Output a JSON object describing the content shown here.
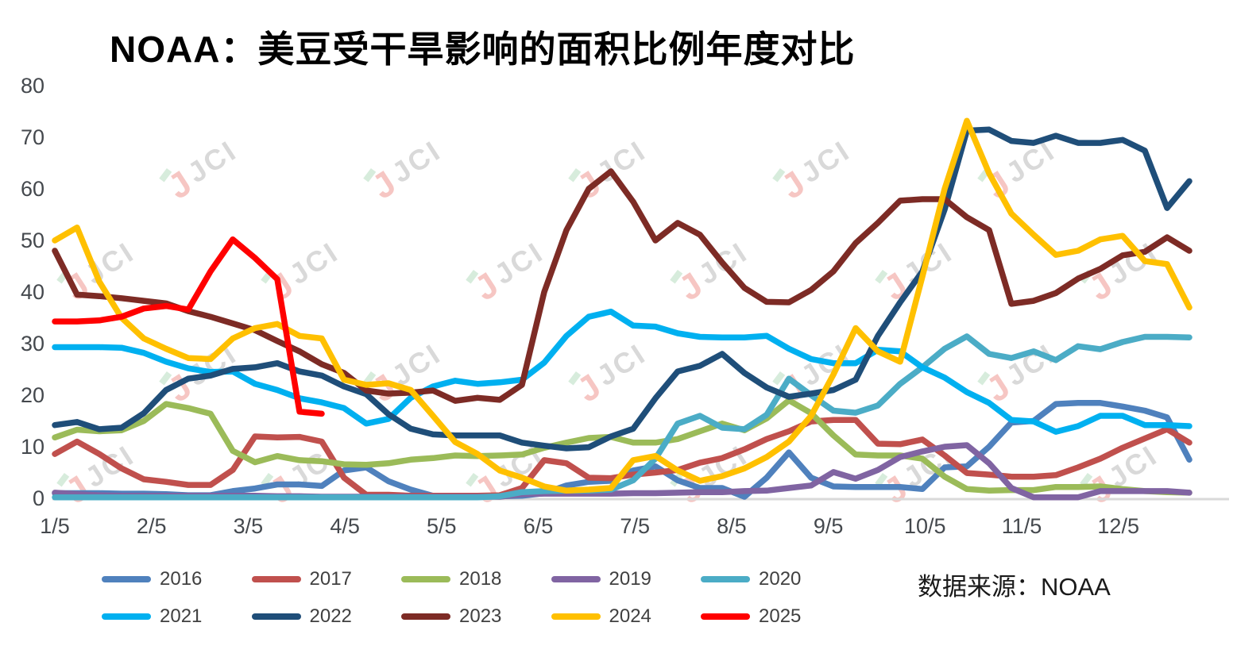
{
  "title": "NOAA：美豆受干旱影响的面积比例年度对比",
  "source": "数据来源：NOAA",
  "watermark": {
    "text": "JCI"
  },
  "colors": {
    "axis_line": "#d9d9d9",
    "tick_label": "#44484d",
    "title": "#000000",
    "watermark_gray": "#d9d9d9",
    "watermark_pink": "#f6c6c3"
  },
  "chart_data": {
    "type": "line",
    "title": "NOAA：美豆受干旱影响的面积比例年度对比",
    "xlabel": "",
    "ylabel": "",
    "ylim": [
      0,
      80
    ],
    "y_ticks": [
      0,
      10,
      20,
      30,
      40,
      50,
      60,
      70,
      80
    ],
    "x_tick_labels": [
      "1/5",
      "2/5",
      "3/5",
      "4/5",
      "5/5",
      "6/5",
      "7/5",
      "8/5",
      "9/5",
      "10/5",
      "11/5",
      "12/5"
    ],
    "x_unit": "weekly values starting Jan 5",
    "grid": false,
    "legend_position": "bottom",
    "series": [
      {
        "name": "2016",
        "color": "#4F81BD",
        "values": [
          1,
          1,
          1,
          0.9,
          0.9,
          0.8,
          0.6,
          0.6,
          1.4,
          1.9,
          2.7,
          2.7,
          2.4,
          5.4,
          6,
          3.3,
          1.7,
          0.5,
          0.5,
          0.4,
          0.4,
          0.5,
          1,
          2.5,
          3.2,
          3.4,
          5.4,
          6.2,
          3.5,
          2,
          2,
          0.3,
          4,
          8.9,
          4,
          2.3,
          2.2,
          2.2,
          2.2,
          1.8,
          6,
          6.2,
          10,
          14.7,
          15,
          18.3,
          18.5,
          18.5,
          17.8,
          17,
          15.7,
          7.5
        ]
      },
      {
        "name": "2017",
        "color": "#C0504D",
        "values": [
          8.6,
          11,
          8.6,
          5.8,
          3.7,
          3.2,
          2.6,
          2.6,
          5.5,
          12,
          11.8,
          11.9,
          11,
          4,
          0.7,
          0.7,
          0.5,
          0.5,
          0.5,
          0.5,
          0.6,
          2,
          7.4,
          6.8,
          4,
          3.9,
          4.6,
          5,
          5.5,
          6.9,
          7.8,
          9.5,
          11.5,
          13,
          14.9,
          15.2,
          15.2,
          10.6,
          10.5,
          11.4,
          8.3,
          4.9,
          4.6,
          4.2,
          4.2,
          4.5,
          6,
          7.7,
          9.8,
          11.6,
          13.4,
          10.8
        ]
      },
      {
        "name": "2018",
        "color": "#9BBB59",
        "values": [
          11.8,
          13.3,
          13,
          13.2,
          15,
          18.3,
          17.5,
          16.4,
          9.2,
          7,
          8.2,
          7.4,
          7.2,
          6.6,
          6.5,
          6.8,
          7.5,
          7.8,
          8.3,
          8.2,
          8.3,
          8.5,
          9.8,
          10.8,
          11.7,
          11.9,
          10.8,
          10.8,
          11.5,
          13,
          14.5,
          13.2,
          15.5,
          19,
          16.5,
          12.2,
          8.5,
          8.3,
          8.3,
          7.7,
          4.2,
          1.8,
          1.5,
          1.6,
          1.6,
          2.2,
          2.2,
          2.3,
          1.8,
          1.4,
          1.2,
          1.1
        ]
      },
      {
        "name": "2019",
        "color": "#8064A2",
        "values": [
          1.1,
          0.8,
          0.6,
          0.5,
          0.5,
          0.5,
          0.5,
          0.5,
          0.5,
          0.5,
          0.4,
          0.4,
          0.3,
          0.3,
          0.3,
          0.3,
          0.3,
          0.3,
          0.3,
          0.3,
          0.3,
          0.8,
          0.9,
          0.9,
          0.9,
          0.9,
          1,
          1,
          1.1,
          1.2,
          1.2,
          1.4,
          1.5,
          2,
          2.5,
          5.1,
          3.8,
          5.5,
          8,
          9.1,
          10,
          10.3,
          6.8,
          2,
          0.2,
          0.2,
          0.2,
          1.4,
          1.4,
          1.4,
          1.4,
          1.1
        ]
      },
      {
        "name": "2020",
        "color": "#4BACC6",
        "values": [
          0.2,
          0.2,
          0.2,
          0.2,
          0.2,
          0.2,
          0.2,
          0.2,
          0.2,
          0.2,
          0.2,
          0.2,
          0.2,
          0.2,
          0.2,
          0.2,
          0.2,
          0.2,
          0.2,
          0.2,
          0.4,
          1.2,
          1.4,
          1.5,
          1.5,
          1.7,
          3.5,
          7.7,
          14.5,
          16,
          13.7,
          13.4,
          16.2,
          23.2,
          20,
          17,
          16.6,
          18,
          22.2,
          25.4,
          29,
          31.4,
          28,
          27.2,
          28.5,
          26.8,
          29.5,
          28.9,
          30.3,
          31.3,
          31.3,
          31.2
        ]
      },
      {
        "name": "2021",
        "color": "#00B0F0",
        "values": [
          29.3,
          29.3,
          29.3,
          29.2,
          28.2,
          26.5,
          25.2,
          24.5,
          24.6,
          22.2,
          21,
          19.4,
          18.6,
          17.5,
          14.5,
          15.4,
          19.5,
          21.7,
          22.8,
          22.2,
          22.5,
          23,
          26.3,
          31.5,
          35.2,
          36.2,
          33.5,
          33.3,
          32,
          31.3,
          31.2,
          31.2,
          31.5,
          29,
          27,
          26.2,
          26.2,
          28.8,
          28.5,
          25.4,
          23.4,
          20.6,
          18.5,
          15.2,
          14.9,
          12.9,
          14,
          16,
          16,
          14.2,
          14.2,
          14
        ]
      },
      {
        "name": "2022",
        "color": "#1F4E79",
        "values": [
          14.2,
          14.8,
          13.4,
          13.7,
          16.5,
          21,
          23.2,
          23.8,
          25.1,
          25.4,
          26.2,
          24.6,
          23.8,
          21.7,
          20.2,
          16.3,
          13.5,
          12.4,
          12.2,
          12.2,
          12.2,
          10.8,
          10.2,
          9.7,
          9.9,
          12,
          13.5,
          19.4,
          24.6,
          25.7,
          28,
          24.3,
          21.5,
          19.7,
          20.3,
          21,
          23,
          31.5,
          38,
          44,
          56,
          71.3,
          71.5,
          69.3,
          68.9,
          70.3,
          68.9,
          68.9,
          69.5,
          67.4,
          56.3,
          61.5
        ]
      },
      {
        "name": "2023",
        "color": "#7D2B25",
        "values": [
          48,
          39.5,
          39.2,
          38.8,
          38.3,
          37.8,
          36.3,
          35.2,
          33.9,
          32.6,
          30.5,
          28.5,
          26,
          24.3,
          20.9,
          20.3,
          20.5,
          20.9,
          18.9,
          19.5,
          19.1,
          22,
          40,
          52,
          60,
          63.4,
          57.5,
          50,
          53.4,
          51.1,
          45.7,
          40.8,
          38.1,
          38,
          40.4,
          44,
          49.5,
          53.4,
          57.7,
          58,
          58,
          54.5,
          52,
          37.7,
          38.3,
          39.8,
          42.6,
          44.5,
          47.1,
          47.8,
          50.6,
          48
        ]
      },
      {
        "name": "2024",
        "color": "#FFC000",
        "values": [
          50,
          52.5,
          42,
          35,
          31,
          29,
          27.2,
          27,
          31,
          33,
          33.8,
          31.5,
          31,
          23,
          22,
          22.3,
          21,
          16,
          10.9,
          8.6,
          5.4,
          4,
          2.3,
          1.5,
          1.7,
          2,
          7.4,
          8.2,
          5.4,
          3.4,
          4.3,
          5.8,
          8,
          11,
          16,
          24,
          33,
          28.5,
          26.5,
          43,
          60,
          73.2,
          63,
          55.2,
          51.1,
          47.2,
          48,
          50.2,
          50.9,
          46,
          45.4,
          37
        ]
      },
      {
        "name": "2025",
        "color": "#FF0000",
        "values": [
          34.3,
          34.3,
          34.5,
          35.2,
          36.8,
          37.3,
          36.6,
          44,
          50.2,
          46.6,
          42.5,
          16.8,
          16.4
        ]
      }
    ]
  }
}
